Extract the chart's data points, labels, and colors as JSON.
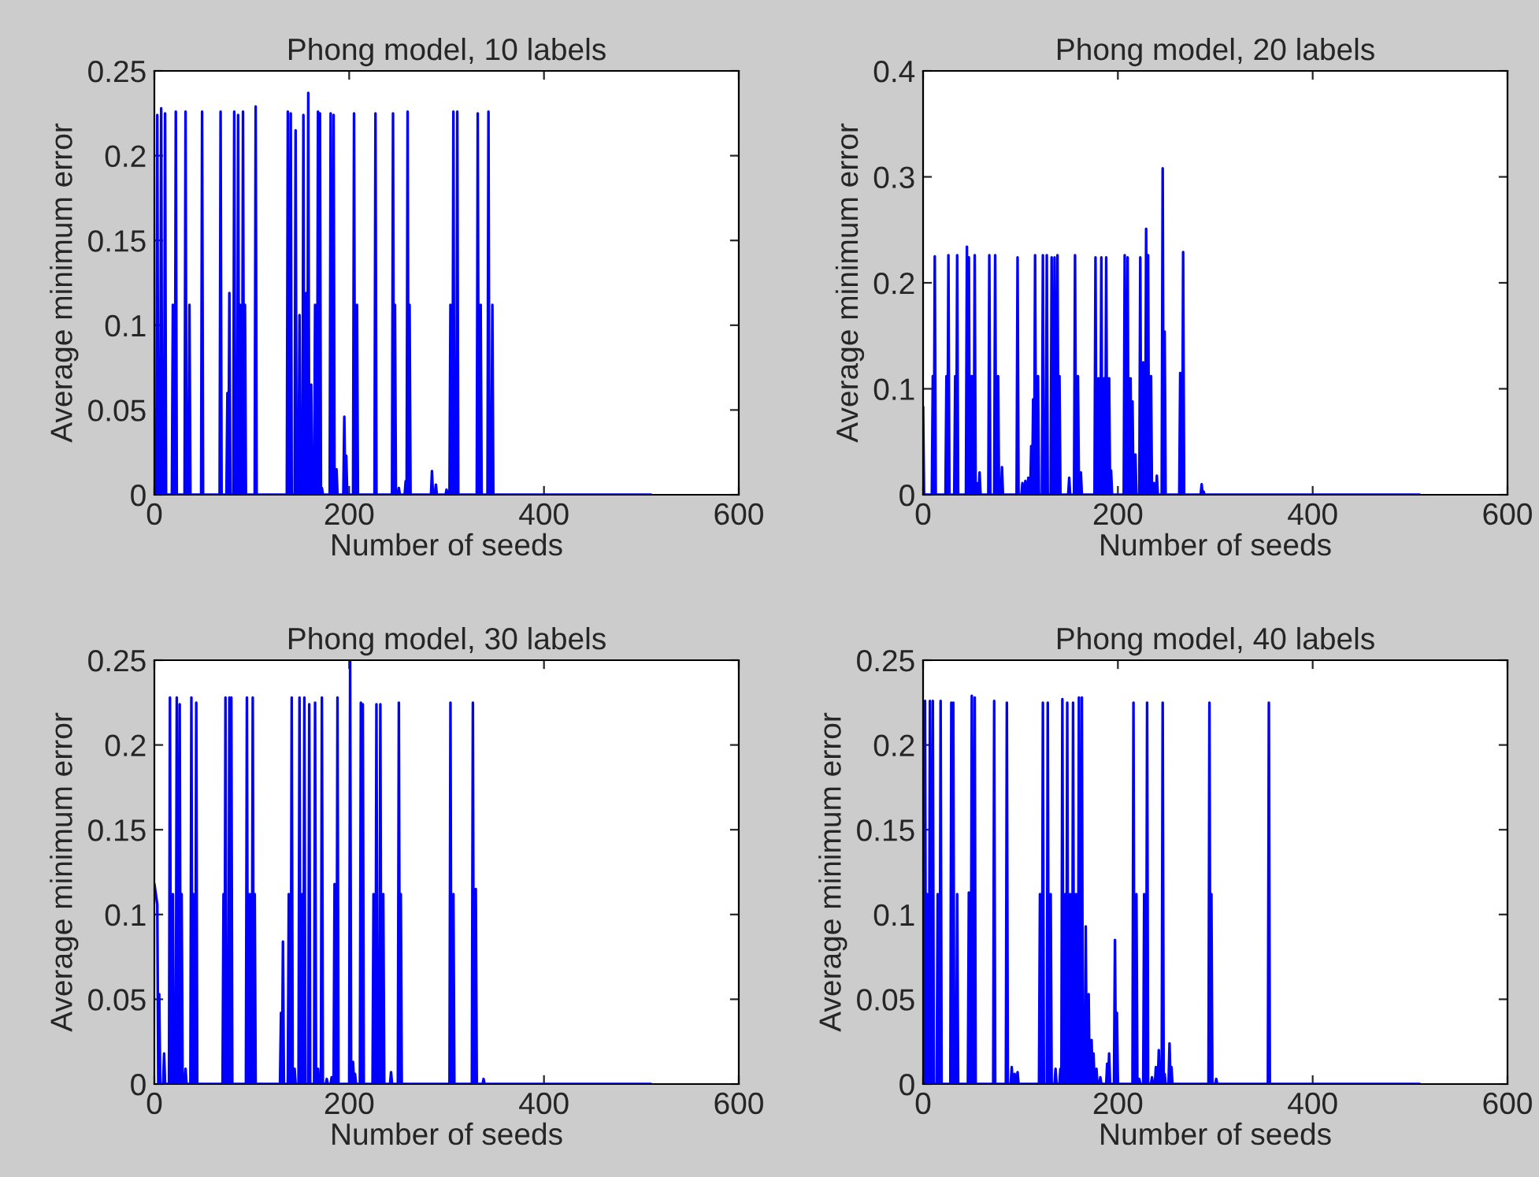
{
  "chart_data": [
    {
      "type": "line",
      "title": "Phong model, 10 labels",
      "xlabel": "Number of seeds",
      "ylabel": "Average minimum error",
      "color": "#0000ff",
      "xlim": [
        0,
        600
      ],
      "ylim": [
        0,
        0.25
      ],
      "xticks": [
        0,
        200,
        400,
        600
      ],
      "yticks": [
        0,
        0.05,
        0.1,
        0.15,
        0.2,
        0.25
      ],
      "x": [
        0,
        2,
        3,
        4,
        6,
        7,
        8,
        10,
        11,
        12,
        18,
        19,
        20,
        21,
        22,
        23,
        31,
        32,
        33,
        35,
        36,
        37,
        48,
        49,
        50,
        67,
        68,
        69,
        74,
        75,
        76,
        76,
        77,
        78,
        81,
        82,
        83,
        85,
        86,
        87,
        87,
        88,
        89,
        90,
        91,
        92,
        92,
        93,
        94,
        103,
        104,
        105,
        136,
        137,
        138,
        139,
        140,
        141,
        144,
        145,
        146,
        148,
        149,
        150,
        152,
        153,
        154,
        155,
        156,
        157,
        157,
        158,
        159,
        160,
        161,
        162,
        164,
        165,
        166,
        167,
        168,
        169,
        169,
        170,
        171,
        171,
        172,
        173,
        180,
        181,
        182,
        183,
        184,
        185,
        186,
        187,
        188,
        194,
        195,
        196,
        196,
        197,
        198,
        204,
        205,
        206,
        207,
        208,
        209,
        226,
        227,
        228,
        244,
        245,
        246,
        246,
        247,
        248,
        250,
        251,
        252,
        257,
        258,
        259,
        259,
        260,
        261,
        261,
        262,
        263,
        284,
        285,
        286,
        288,
        289,
        290,
        299,
        300,
        301,
        303,
        304,
        305,
        306,
        307,
        308,
        310,
        311,
        312,
        331,
        332,
        333,
        334,
        335,
        336,
        342,
        343,
        344,
        346,
        347,
        348,
        510
      ],
      "values": [
        0,
        0,
        0.224,
        0,
        0,
        0.228,
        0,
        0,
        0.225,
        0,
        0,
        0.112,
        0,
        0,
        0.226,
        0,
        0,
        0.226,
        0,
        0,
        0.112,
        0,
        0,
        0.226,
        0,
        0,
        0.226,
        0,
        0,
        0.06,
        0,
        0,
        0.119,
        0,
        0,
        0.226,
        0,
        0,
        0.224,
        0,
        0,
        0.112,
        0,
        0,
        0.226,
        0,
        0,
        0.112,
        0,
        0,
        0.229,
        0,
        0,
        0.226,
        0,
        0,
        0.225,
        0,
        0,
        0.215,
        0,
        0,
        0.106,
        0,
        0,
        0.224,
        0,
        0,
        0.119,
        0,
        0,
        0.237,
        0,
        0,
        0.065,
        0,
        0,
        0.112,
        0,
        0,
        0.226,
        0,
        0,
        0.225,
        0,
        0,
        0.004,
        0,
        0,
        0.225,
        0,
        0,
        0.224,
        0,
        0,
        0.015,
        0,
        0,
        0.046,
        0,
        0,
        0.023,
        0,
        0,
        0.225,
        0,
        0,
        0.112,
        0,
        0,
        0.225,
        0,
        0,
        0.225,
        0,
        0,
        0.112,
        0,
        0,
        0.004,
        0,
        0,
        0.008,
        0,
        0,
        0.226,
        0,
        0,
        0.112,
        0,
        0,
        0.014,
        0,
        0,
        0.006,
        0,
        0,
        0.003,
        0,
        0,
        0.112,
        0,
        0,
        0.226,
        0,
        0,
        0.226,
        0,
        0,
        0.225,
        0,
        0,
        0.112,
        0,
        0,
        0.226,
        0,
        0,
        0.112,
        0,
        0
      ]
    },
    {
      "type": "line",
      "title": "Phong model, 20 labels",
      "xlabel": "Number of seeds",
      "ylabel": "Average minimum error",
      "color": "#0000ff",
      "xlim": [
        0,
        600
      ],
      "ylim": [
        0,
        0.4
      ],
      "xticks": [
        0,
        200,
        400,
        600
      ],
      "yticks": [
        0,
        0.1,
        0.2,
        0.3,
        0.4
      ],
      "x": [
        0,
        1,
        9,
        10,
        11,
        11,
        12,
        13,
        23,
        24,
        25,
        25,
        26,
        27,
        32,
        33,
        34,
        34,
        35,
        36,
        44,
        45,
        46,
        46,
        47,
        48,
        49,
        50,
        51,
        52,
        53,
        54,
        54,
        55,
        56,
        57,
        58,
        59,
        67,
        68,
        69,
        73,
        74,
        75,
        76,
        77,
        78,
        80,
        81,
        82,
        96,
        97,
        98,
        101,
        102,
        103,
        104,
        105,
        106,
        107,
        108,
        109,
        110,
        111,
        112,
        112,
        113,
        114,
        114,
        115,
        116,
        117,
        118,
        119,
        122,
        123,
        124,
        126,
        127,
        128,
        131,
        132,
        133,
        134,
        135,
        136,
        137,
        138,
        139,
        139,
        140,
        141,
        149,
        150,
        151,
        155,
        156,
        157,
        158,
        159,
        160,
        161,
        162,
        163,
        176,
        177,
        178,
        179,
        180,
        181,
        182,
        183,
        184,
        185,
        186,
        187,
        187,
        188,
        189,
        190,
        191,
        192,
        192,
        193,
        194,
        206,
        207,
        208,
        209,
        210,
        211,
        212,
        213,
        214,
        214,
        215,
        216,
        217,
        218,
        219,
        222,
        223,
        224,
        225,
        226,
        227,
        228,
        229,
        230,
        230,
        231,
        232,
        233,
        234,
        235,
        236,
        237,
        238,
        239,
        240,
        241,
        245,
        246,
        247,
        247,
        248,
        249,
        263,
        264,
        265,
        266,
        267,
        268,
        285,
        286,
        287,
        287,
        288,
        289,
        510
      ],
      "values": [
        0.083,
        0,
        0,
        0.112,
        0,
        0,
        0.225,
        0,
        0,
        0.112,
        0,
        0,
        0.226,
        0,
        0,
        0.112,
        0,
        0,
        0.226,
        0,
        0,
        0.234,
        0,
        0,
        0.224,
        0,
        0,
        0.112,
        0,
        0,
        0.226,
        0,
        0,
        0.011,
        0,
        0,
        0.021,
        0,
        0,
        0.226,
        0,
        0,
        0.226,
        0,
        0,
        0.112,
        0,
        0,
        0.026,
        0,
        0,
        0.224,
        0,
        0,
        0.011,
        0,
        0,
        0.013,
        0,
        0,
        0.016,
        0,
        0,
        0.046,
        0,
        0,
        0.09,
        0,
        0,
        0.226,
        0,
        0,
        0.112,
        0,
        0,
        0.226,
        0,
        0,
        0.226,
        0,
        0,
        0.224,
        0,
        0,
        0.224,
        0,
        0,
        0.226,
        0,
        0,
        0.112,
        0,
        0,
        0.016,
        0,
        0,
        0.226,
        0,
        0,
        0.112,
        0,
        0,
        0.021,
        0,
        0,
        0.224,
        0,
        0,
        0.11,
        0,
        0,
        0.224,
        0,
        0,
        0.11,
        0,
        0,
        0.224,
        0,
        0,
        0.11,
        0,
        0,
        0.023,
        0,
        0,
        0.226,
        0,
        0,
        0.224,
        0,
        0,
        0.11,
        0,
        0,
        0.088,
        0,
        0,
        0.038,
        0,
        0,
        0.224,
        0,
        0,
        0.125,
        0,
        0,
        0.251,
        0,
        0,
        0.226,
        0,
        0,
        0.112,
        0,
        0,
        0.011,
        0,
        0,
        0.018,
        0,
        0,
        0.308,
        0,
        0,
        0.154,
        0,
        0,
        0.115,
        0,
        0,
        0.229,
        0,
        0,
        0.01,
        0,
        0,
        0.003,
        0,
        0
      ]
    },
    {
      "type": "line",
      "title": "Phong model, 30 labels",
      "xlabel": "Number of seeds",
      "ylabel": "Average minimum error",
      "color": "#0000ff",
      "xlim": [
        0,
        600
      ],
      "ylim": [
        0,
        0.25
      ],
      "xticks": [
        0,
        200,
        400,
        600
      ],
      "yticks": [
        0,
        0.05,
        0.1,
        0.15,
        0.2,
        0.25
      ],
      "x": [
        0,
        3,
        4,
        5,
        6,
        9,
        10,
        11,
        15,
        16,
        17,
        18,
        19,
        20,
        22,
        23,
        24,
        25,
        26,
        27,
        27,
        28,
        29,
        31,
        32,
        33,
        37,
        38,
        39,
        39,
        40,
        41,
        42,
        43,
        44,
        70,
        71,
        72,
        72,
        73,
        74,
        76,
        77,
        78,
        78,
        79,
        80,
        94,
        95,
        96,
        97,
        98,
        99,
        100,
        101,
        102,
        102,
        103,
        104,
        129,
        130,
        131,
        131,
        132,
        133,
        137,
        138,
        139,
        140,
        141,
        142,
        143,
        144,
        145,
        148,
        149,
        150,
        151,
        152,
        153,
        153,
        154,
        155,
        158,
        159,
        160,
        164,
        165,
        166,
        167,
        168,
        169,
        171,
        172,
        173,
        176,
        177,
        178,
        181,
        182,
        183,
        184,
        185,
        186,
        187,
        188,
        189,
        200,
        201,
        202,
        203,
        204,
        205,
        205,
        206,
        207,
        211,
        212,
        213,
        213,
        214,
        215,
        224,
        225,
        226,
        227,
        228,
        229,
        231,
        232,
        233,
        234,
        235,
        236,
        242,
        243,
        244,
        250,
        251,
        252,
        252,
        253,
        254,
        303,
        304,
        305,
        306,
        307,
        308,
        326,
        327,
        328,
        329,
        330,
        331,
        337,
        338,
        339,
        510
      ],
      "values": [
        0.118,
        0.106,
        0,
        0.053,
        0,
        0,
        0.018,
        0,
        0,
        0.228,
        0,
        0,
        0.112,
        0,
        0,
        0.228,
        0,
        0,
        0.224,
        0,
        0,
        0.112,
        0,
        0,
        0.009,
        0,
        0,
        0.228,
        0,
        0,
        0.112,
        0,
        0,
        0.225,
        0,
        0,
        0.112,
        0,
        0,
        0.228,
        0,
        0,
        0.228,
        0,
        0,
        0.228,
        0,
        0,
        0.228,
        0,
        0,
        0.112,
        0,
        0,
        0.228,
        0,
        0,
        0.112,
        0,
        0,
        0.042,
        0,
        0,
        0.084,
        0,
        0,
        0.112,
        0,
        0,
        0.228,
        0,
        0,
        0.009,
        0,
        0,
        0.228,
        0,
        0,
        0.112,
        0,
        0,
        0.228,
        0,
        0,
        0.224,
        0,
        0,
        0.225,
        0,
        0,
        0.009,
        0,
        0,
        0.228,
        0,
        0,
        0.003,
        0,
        0,
        0.004,
        0,
        0,
        0.118,
        0,
        0,
        0.228,
        0,
        0,
        0.25,
        0,
        0,
        0.013,
        0,
        0,
        0.006,
        0,
        0,
        0.225,
        0,
        0,
        0.224,
        0,
        0,
        0.112,
        0,
        0,
        0.224,
        0,
        0,
        0.224,
        0,
        0,
        0.112,
        0,
        0,
        0.007,
        0,
        0,
        0.225,
        0,
        0,
        0.112,
        0,
        0,
        0.225,
        0,
        0,
        0.112,
        0,
        0,
        0.225,
        0,
        0,
        0.115,
        0,
        0,
        0.003,
        0,
        0
      ]
    },
    {
      "type": "line",
      "title": "Phong model, 40 labels",
      "xlabel": "Number of seeds",
      "ylabel": "Average minimum error",
      "color": "#0000ff",
      "xlim": [
        0,
        600
      ],
      "ylim": [
        0,
        0.25
      ],
      "xticks": [
        0,
        200,
        400,
        600
      ],
      "yticks": [
        0,
        0.05,
        0.1,
        0.15,
        0.2,
        0.25
      ],
      "x": [
        0,
        1,
        2,
        3,
        3,
        4,
        5,
        6,
        7,
        8,
        9,
        10,
        11,
        14,
        15,
        16,
        17,
        18,
        19,
        28,
        29,
        30,
        30,
        31,
        32,
        34,
        35,
        36,
        46,
        47,
        48,
        49,
        50,
        51,
        52,
        53,
        54,
        72,
        73,
        74,
        85,
        86,
        87,
        90,
        91,
        92,
        93,
        94,
        95,
        96,
        97,
        98,
        119,
        120,
        121,
        122,
        123,
        124,
        127,
        128,
        129,
        130,
        131,
        132,
        135,
        136,
        137,
        140,
        141,
        142,
        142,
        143,
        144,
        145,
        146,
        147,
        147,
        148,
        149,
        150,
        151,
        152,
        153,
        154,
        155,
        156,
        157,
        158,
        159,
        160,
        161,
        162,
        163,
        164,
        166,
        167,
        168,
        169,
        170,
        171,
        172,
        173,
        174,
        174,
        175,
        176,
        177,
        178,
        179,
        181,
        182,
        183,
        188,
        189,
        190,
        190,
        191,
        192,
        196,
        197,
        198,
        198,
        199,
        200,
        215,
        216,
        217,
        218,
        219,
        220,
        221,
        222,
        223,
        226,
        227,
        228,
        229,
        230,
        231,
        234,
        235,
        236,
        238,
        239,
        240,
        241,
        242,
        243,
        245,
        246,
        247,
        247,
        248,
        249,
        252,
        253,
        254,
        254,
        255,
        256,
        293,
        294,
        295,
        295,
        296,
        297,
        300,
        301,
        302,
        354,
        355,
        356,
        510
      ],
      "values": [
        0,
        0,
        0.226,
        0,
        0,
        0.112,
        0,
        0,
        0.226,
        0,
        0,
        0.226,
        0,
        0,
        0.112,
        0,
        0,
        0.226,
        0,
        0,
        0.225,
        0,
        0,
        0.225,
        0,
        0,
        0.112,
        0,
        0,
        0.113,
        0,
        0,
        0.229,
        0,
        0,
        0.228,
        0,
        0,
        0.226,
        0,
        0,
        0.225,
        0,
        0,
        0.01,
        0,
        0,
        0.006,
        0,
        0,
        0.007,
        0,
        0,
        0.112,
        0,
        0,
        0.225,
        0,
        0,
        0.225,
        0,
        0,
        0.112,
        0,
        0,
        0.009,
        0,
        0,
        0.009,
        0,
        0,
        0.227,
        0,
        0,
        0.112,
        0,
        0,
        0.225,
        0,
        0,
        0.112,
        0,
        0,
        0.225,
        0,
        0,
        0.112,
        0,
        0,
        0.228,
        0,
        0,
        0.228,
        0,
        0,
        0.093,
        0,
        0,
        0.053,
        0,
        0,
        0.026,
        0,
        0,
        0.018,
        0,
        0,
        0.009,
        0,
        0,
        0.004,
        0,
        0,
        0.012,
        0,
        0,
        0.018,
        0,
        0,
        0.085,
        0,
        0,
        0.042,
        0,
        0,
        0.225,
        0,
        0,
        0.112,
        0,
        0,
        0.003,
        0,
        0,
        0.112,
        0,
        0,
        0.225,
        0,
        0,
        0.004,
        0,
        0,
        0.01,
        0,
        0,
        0.02,
        0,
        0,
        0.225,
        0,
        0,
        0.006,
        0,
        0,
        0.024,
        0,
        0,
        0.01,
        0,
        0,
        0.225,
        0,
        0,
        0.112,
        0,
        0,
        0.003,
        0,
        0,
        0.225,
        0,
        0
      ]
    }
  ]
}
